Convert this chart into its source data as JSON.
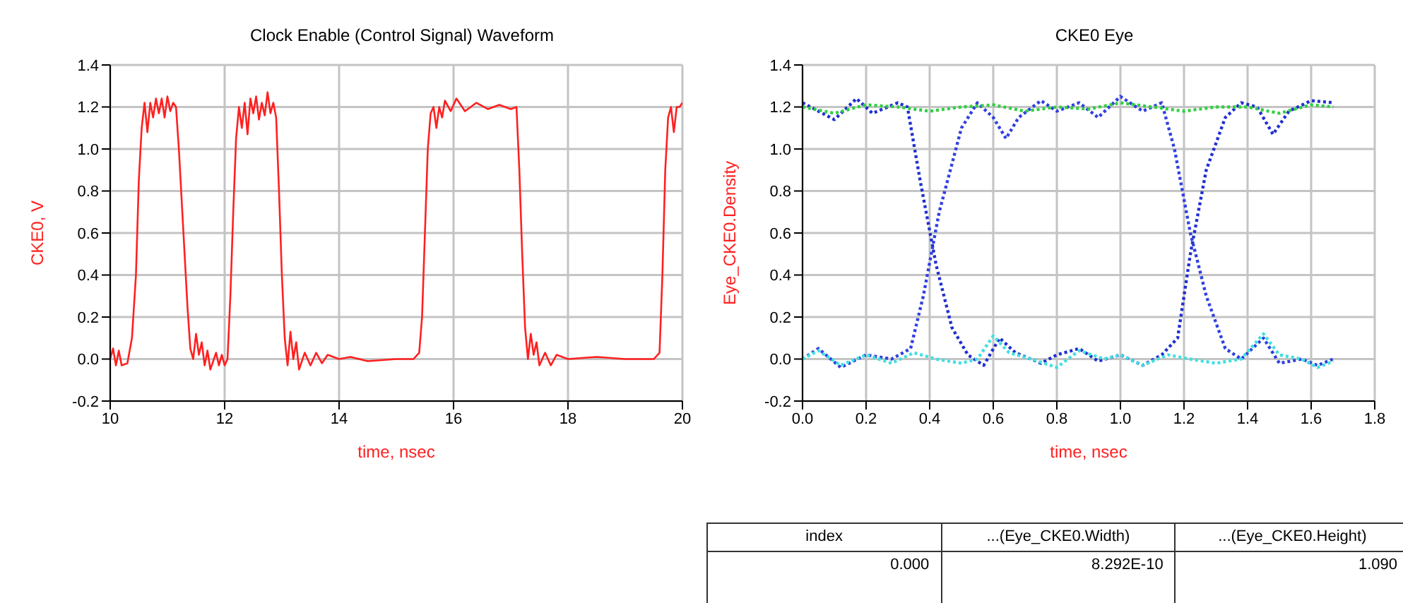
{
  "chart_data": [
    {
      "type": "line",
      "title": "Clock Enable (Control Signal) Waveform",
      "xlabel": "time, nsec",
      "ylabel": "CKE0, V",
      "xlim": [
        10,
        20
      ],
      "xticks": [
        10,
        12,
        14,
        16,
        18,
        20
      ],
      "ylim": [
        -0.2,
        1.4
      ],
      "yticks": [
        {
          "value": -0.2,
          "label": "-0.2"
        },
        {
          "value": 0,
          "label": "0.0"
        },
        {
          "value": 0.2,
          "label": "0.2"
        },
        {
          "value": 0.4,
          "label": "0.4"
        },
        {
          "value": 0.6,
          "label": "0.6"
        },
        {
          "value": 0.8,
          "label": "0.8"
        },
        {
          "value": 1,
          "label": "1.0"
        },
        {
          "value": 1.2,
          "label": "1.2"
        },
        {
          "value": 1.4,
          "label": "1.4"
        }
      ],
      "grid": true,
      "marker": "none",
      "line_style": "solid",
      "series": [
        {
          "color": "#ff2020",
          "x": [
            10.0,
            10.05,
            10.1,
            10.15,
            10.2,
            10.3,
            10.38,
            10.45,
            10.5,
            10.55,
            10.6,
            10.65,
            10.7,
            10.75,
            10.8,
            10.85,
            10.9,
            10.95,
            11.0,
            11.05,
            11.1,
            11.15,
            11.2,
            11.28,
            11.35,
            11.4,
            11.45,
            11.5,
            11.55,
            11.6,
            11.65,
            11.7,
            11.75,
            11.85,
            11.9,
            11.95,
            12.0,
            12.05,
            12.1,
            12.15,
            12.2,
            12.25,
            12.3,
            12.35,
            12.4,
            12.45,
            12.5,
            12.55,
            12.6,
            12.65,
            12.7,
            12.75,
            12.8,
            12.85,
            12.9,
            12.95,
            13.0,
            13.05,
            13.1,
            13.15,
            13.2,
            13.25,
            13.3,
            13.4,
            13.5,
            13.6,
            13.7,
            13.8,
            14.0,
            14.2,
            14.5,
            15.0,
            15.3,
            15.4,
            15.45,
            15.5,
            15.55,
            15.6,
            15.65,
            15.7,
            15.75,
            15.8,
            15.85,
            15.95,
            16.05,
            16.2,
            16.4,
            16.6,
            16.8,
            17.0,
            17.1,
            17.15,
            17.2,
            17.25,
            17.3,
            17.35,
            17.4,
            17.45,
            17.5,
            17.6,
            17.7,
            17.8,
            18.0,
            18.5,
            19.0,
            19.5,
            19.6,
            19.65,
            19.7,
            19.75,
            19.8,
            19.85,
            19.9,
            19.95,
            20.0
          ],
          "values": [
            0.0,
            0.05,
            -0.03,
            0.04,
            -0.03,
            -0.02,
            0.1,
            0.4,
            0.85,
            1.1,
            1.22,
            1.08,
            1.22,
            1.15,
            1.24,
            1.17,
            1.24,
            1.15,
            1.25,
            1.18,
            1.22,
            1.2,
            1.0,
            0.6,
            0.25,
            0.05,
            0.0,
            0.12,
            0.02,
            0.08,
            -0.03,
            0.04,
            -0.05,
            0.03,
            -0.03,
            0.02,
            -0.03,
            0.0,
            0.3,
            0.7,
            1.05,
            1.2,
            1.1,
            1.22,
            1.07,
            1.24,
            1.17,
            1.25,
            1.14,
            1.22,
            1.16,
            1.27,
            1.17,
            1.22,
            1.15,
            0.8,
            0.4,
            0.1,
            -0.03,
            0.13,
            0.0,
            0.08,
            -0.05,
            0.03,
            -0.03,
            0.03,
            -0.02,
            0.02,
            0.0,
            0.01,
            -0.01,
            0.0,
            0.0,
            0.03,
            0.2,
            0.6,
            1.0,
            1.17,
            1.2,
            1.1,
            1.2,
            1.15,
            1.23,
            1.18,
            1.24,
            1.18,
            1.22,
            1.19,
            1.21,
            1.19,
            1.2,
            0.9,
            0.5,
            0.15,
            0.0,
            0.12,
            0.02,
            0.08,
            -0.03,
            0.03,
            -0.03,
            0.02,
            0.0,
            0.01,
            0.0,
            0.0,
            0.03,
            0.4,
            0.9,
            1.15,
            1.2,
            1.08,
            1.2,
            1.2,
            1.22
          ]
        }
      ]
    },
    {
      "type": "line",
      "title": "CKE0 Eye",
      "xlabel": "time, nsec",
      "ylabel": "Eye_CKE0.Density",
      "xlim": [
        0,
        1.8
      ],
      "xticks": [
        {
          "value": 0,
          "label": "0.0"
        },
        {
          "value": 0.2,
          "label": "0.2"
        },
        {
          "value": 0.4,
          "label": "0.4"
        },
        {
          "value": 0.6,
          "label": "0.6"
        },
        {
          "value": 0.8,
          "label": "0.8"
        },
        {
          "value": 1,
          "label": "1.0"
        },
        {
          "value": 1.2,
          "label": "1.2"
        },
        {
          "value": 1.4,
          "label": "1.4"
        },
        {
          "value": 1.6,
          "label": "1.6"
        },
        {
          "value": 1.8,
          "label": "1.8"
        }
      ],
      "ylim": [
        -0.2,
        1.4
      ],
      "yticks": [
        {
          "value": -0.2,
          "label": "-0.2"
        },
        {
          "value": 0,
          "label": "0.0"
        },
        {
          "value": 0.2,
          "label": "0.2"
        },
        {
          "value": 0.4,
          "label": "0.4"
        },
        {
          "value": 0.6,
          "label": "0.6"
        },
        {
          "value": 0.8,
          "label": "0.8"
        },
        {
          "value": 1,
          "label": "1.0"
        },
        {
          "value": 1.2,
          "label": "1.2"
        },
        {
          "value": 1.4,
          "label": "1.4"
        }
      ],
      "grid": true,
      "marker": "none",
      "line_style": "dotted",
      "series": [
        {
          "color": "#2030d0",
          "x": [
            0,
            0.05,
            0.1,
            0.17,
            0.22,
            0.3,
            0.33,
            0.37,
            0.42,
            0.47,
            0.52,
            0.57,
            0.62,
            0.67,
            0.75,
            0.8,
            0.87,
            0.93,
            1.0,
            1.07,
            1.13,
            1.18,
            1.22,
            1.27,
            1.33,
            1.38,
            1.43,
            1.48,
            1.53,
            1.6,
            1.67
          ],
          "values": [
            1.22,
            1.18,
            1.14,
            1.24,
            1.17,
            1.22,
            1.2,
            0.85,
            0.45,
            0.15,
            0.02,
            -0.03,
            0.1,
            0.03,
            -0.02,
            0.02,
            0.05,
            -0.01,
            0.02,
            -0.03,
            0.02,
            0.1,
            0.5,
            0.9,
            1.15,
            1.22,
            1.2,
            1.07,
            1.18,
            1.23,
            1.22
          ]
        },
        {
          "color": "#3040e0",
          "x": [
            0,
            0.05,
            0.12,
            0.2,
            0.28,
            0.34,
            0.38,
            0.43,
            0.5,
            0.55,
            0.6,
            0.64,
            0.68,
            0.75,
            0.8,
            0.87,
            0.93,
            1.0,
            1.07,
            1.13,
            1.17,
            1.22,
            1.27,
            1.33,
            1.38,
            1.45,
            1.5,
            1.57,
            1.62,
            1.67
          ],
          "values": [
            0.0,
            0.05,
            -0.04,
            0.02,
            0.0,
            0.05,
            0.3,
            0.7,
            1.1,
            1.22,
            1.15,
            1.05,
            1.15,
            1.23,
            1.18,
            1.22,
            1.15,
            1.25,
            1.18,
            1.22,
            1.0,
            0.6,
            0.3,
            0.05,
            0.0,
            0.1,
            -0.02,
            0.0,
            -0.03,
            0.0
          ]
        },
        {
          "color": "#30d040",
          "x": [
            0,
            0.1,
            0.2,
            0.3,
            0.4,
            0.5,
            0.6,
            0.7,
            0.8,
            0.9,
            1.0,
            1.1,
            1.2,
            1.3,
            1.4,
            1.5,
            1.6,
            1.67
          ],
          "values": [
            1.2,
            1.17,
            1.21,
            1.2,
            1.18,
            1.2,
            1.21,
            1.18,
            1.2,
            1.19,
            1.22,
            1.2,
            1.18,
            1.2,
            1.2,
            1.17,
            1.21,
            1.2
          ]
        },
        {
          "color": "#40e0e0",
          "x": [
            0,
            0.05,
            0.12,
            0.2,
            0.28,
            0.35,
            0.42,
            0.5,
            0.55,
            0.6,
            0.65,
            0.72,
            0.8,
            0.87,
            0.95,
            1.0,
            1.07,
            1.15,
            1.22,
            1.3,
            1.38,
            1.45,
            1.5,
            1.57,
            1.62,
            1.67
          ],
          "values": [
            0.0,
            0.04,
            -0.03,
            0.02,
            -0.02,
            0.03,
            0.0,
            -0.02,
            0.0,
            0.11,
            0.03,
            0.0,
            -0.04,
            0.04,
            0.0,
            0.02,
            -0.03,
            0.02,
            0.0,
            -0.02,
            0.0,
            0.12,
            0.02,
            0.0,
            -0.04,
            -0.01
          ]
        }
      ]
    },
    {
      "type": "other",
      "annotations": [
        "index",
        "...(Eye_CKE0.Width)",
        "...(Eye_CKE0.Height)",
        "0.000",
        "8.292E-10",
        "1.090"
      ]
    }
  ]
}
